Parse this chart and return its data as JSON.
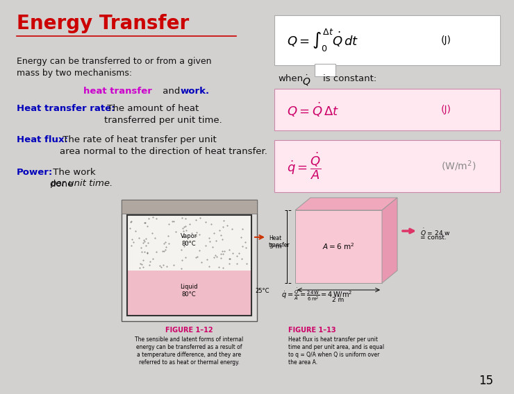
{
  "bg_color": "#d3d0d0",
  "title": "Energy Transfer",
  "title_color": "#cc0000",
  "body_color": "#111111",
  "blue_color": "#0000bb",
  "purple_color": "#cc00cc",
  "page_num": "15",
  "fig1_label": "FIGURE 1–12",
  "fig1_caption": "The sensible and latent forms of internal\nenergy can be transferred as a result of\na temperature difference, and they are\nreferred to as heat or thermal energy.",
  "fig2_label": "FIGURE 1–13",
  "fig2_caption": "Heat flux is heat transfer per unit\ntime and per unit area, and is equal\nto q = Q/A when Q is uniform over\nthe area A."
}
